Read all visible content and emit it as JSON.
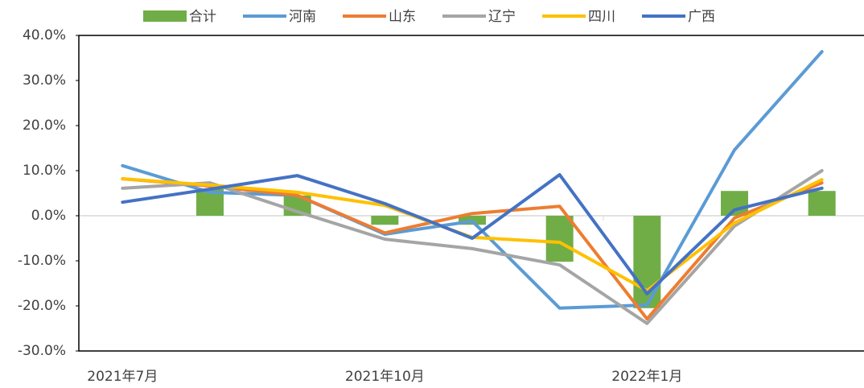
{
  "chart_data": {
    "type": "combo",
    "categories": [
      "2021年7月",
      null,
      null,
      "2021年10月",
      null,
      null,
      "2022年1月",
      null,
      null
    ],
    "series": [
      {
        "name": "合计",
        "type": "bar",
        "color": "#70ad47",
        "values": [
          null,
          5.9,
          4.5,
          -2.0,
          -2.0,
          -10.2,
          -20.5,
          5.5,
          5.5
        ]
      },
      {
        "name": "河南",
        "type": "line",
        "color": "#5b9bd5",
        "values": [
          11.1,
          5.2,
          4.5,
          -4.1,
          -1.2,
          -20.5,
          -19.8,
          14.6,
          36.4
        ]
      },
      {
        "name": "山东",
        "type": "line",
        "color": "#ed7d31",
        "values": [
          8.2,
          6.6,
          4.5,
          -3.8,
          0.5,
          2.1,
          -22.9,
          -0.5,
          7.3
        ]
      },
      {
        "name": "辽宁",
        "type": "line",
        "color": "#a5a5a5",
        "values": [
          6.1,
          7.3,
          0.9,
          -5.2,
          -7.3,
          -10.9,
          -23.9,
          -2.3,
          10.0
        ]
      },
      {
        "name": "四川",
        "type": "line",
        "color": "#ffc000",
        "values": [
          8.2,
          6.8,
          5.2,
          2.3,
          -4.8,
          -5.9,
          -16.6,
          -1.6,
          8.0
        ]
      },
      {
        "name": "广西",
        "type": "line",
        "color": "#4472c4",
        "values": [
          3.0,
          5.9,
          8.9,
          2.7,
          -5.0,
          9.1,
          -17.3,
          1.3,
          6.1
        ]
      }
    ],
    "ylim": [
      -30,
      40
    ],
    "yticks": [
      {
        "value": -30,
        "label": "-30.0%"
      },
      {
        "value": -20,
        "label": "-20.0%"
      },
      {
        "value": -10,
        "label": "-10.0%"
      },
      {
        "value": 0,
        "label": "0.0%"
      },
      {
        "value": 10,
        "label": "10.0%"
      },
      {
        "value": 20,
        "label": "20.0%"
      },
      {
        "value": 30,
        "label": "30.0%"
      },
      {
        "value": 40,
        "label": "40.0%"
      }
    ],
    "legend": "top"
  }
}
